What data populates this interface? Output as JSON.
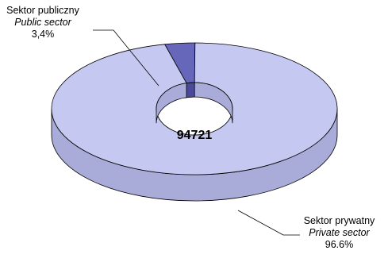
{
  "chart_data": {
    "type": "pie",
    "total_label": "94721",
    "slices": [
      {
        "name": "Sektor publiczny",
        "name_en": "Public sector",
        "value": 3.4,
        "value_label": "3,4%",
        "color": "#6666bb",
        "side_color": "#4a4a99"
      },
      {
        "name": "Sektor prywatny",
        "name_en": "Private sector",
        "value": 96.6,
        "value_label": "96.6%",
        "color": "#c5c8f0",
        "side_color": "#a9acd8"
      }
    ]
  }
}
